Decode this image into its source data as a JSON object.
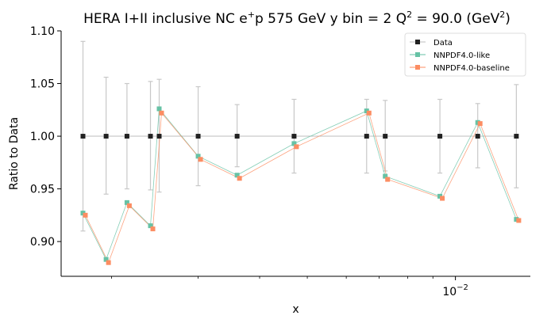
{
  "chart_data": {
    "type": "line",
    "title_parts": [
      "HERA I+II inclusive NC e",
      "+",
      "p 575 GeV y bin = 2 Q",
      "2",
      " = 90.0 (GeV",
      "2",
      ")"
    ],
    "xlabel": "x",
    "ylabel": "Ratio to Data",
    "xscale": "log",
    "xlim": [
      0.00158,
      0.0142
    ],
    "ylim": [
      0.867,
      1.1
    ],
    "yticks": [
      "0.90",
      "0.95",
      "1.00",
      "1.05",
      "1.10"
    ],
    "ytick_values": [
      0.9,
      0.95,
      1.0,
      1.05,
      1.1
    ],
    "xtick_major": {
      "base": "10",
      "exp": "−2",
      "value": 0.01
    },
    "xtick_minor_values": [
      0.002,
      0.003,
      0.004,
      0.005,
      0.006,
      0.007,
      0.008,
      0.009
    ],
    "x": [
      0.00175,
      0.00195,
      0.00215,
      0.0024,
      0.0025,
      0.003,
      0.0036,
      0.0047,
      0.0066,
      0.0072,
      0.0093,
      0.0111,
      0.0133
    ],
    "legend_position": "top-right",
    "colors": {
      "data": "#222222",
      "like": "#66c2a5",
      "baseline": "#fc8d62",
      "errorbar": "#c8c8c8"
    },
    "series": [
      {
        "name": "Data",
        "values": [
          1,
          1,
          1,
          1,
          1,
          1,
          1,
          1,
          1,
          1,
          1,
          1,
          1
        ],
        "err_low": [
          0.09,
          0.055,
          0.05,
          0.051,
          0.053,
          0.047,
          0.029,
          0.035,
          0.035,
          0.033,
          0.035,
          0.03,
          0.049
        ],
        "err_high": [
          0.09,
          0.056,
          0.05,
          0.052,
          0.054,
          0.047,
          0.03,
          0.035,
          0.035,
          0.034,
          0.035,
          0.031,
          0.049
        ]
      },
      {
        "name": "NNPDF4.0-like",
        "values": [
          0.927,
          0.883,
          0.937,
          0.915,
          1.026,
          0.981,
          0.963,
          0.993,
          1.024,
          0.962,
          0.943,
          1.013,
          0.921
        ]
      },
      {
        "name": "NNPDF4.0-baseline",
        "values": [
          0.925,
          0.88,
          0.934,
          0.912,
          1.022,
          0.978,
          0.96,
          0.99,
          1.022,
          0.959,
          0.941,
          1.012,
          0.92
        ]
      }
    ]
  }
}
